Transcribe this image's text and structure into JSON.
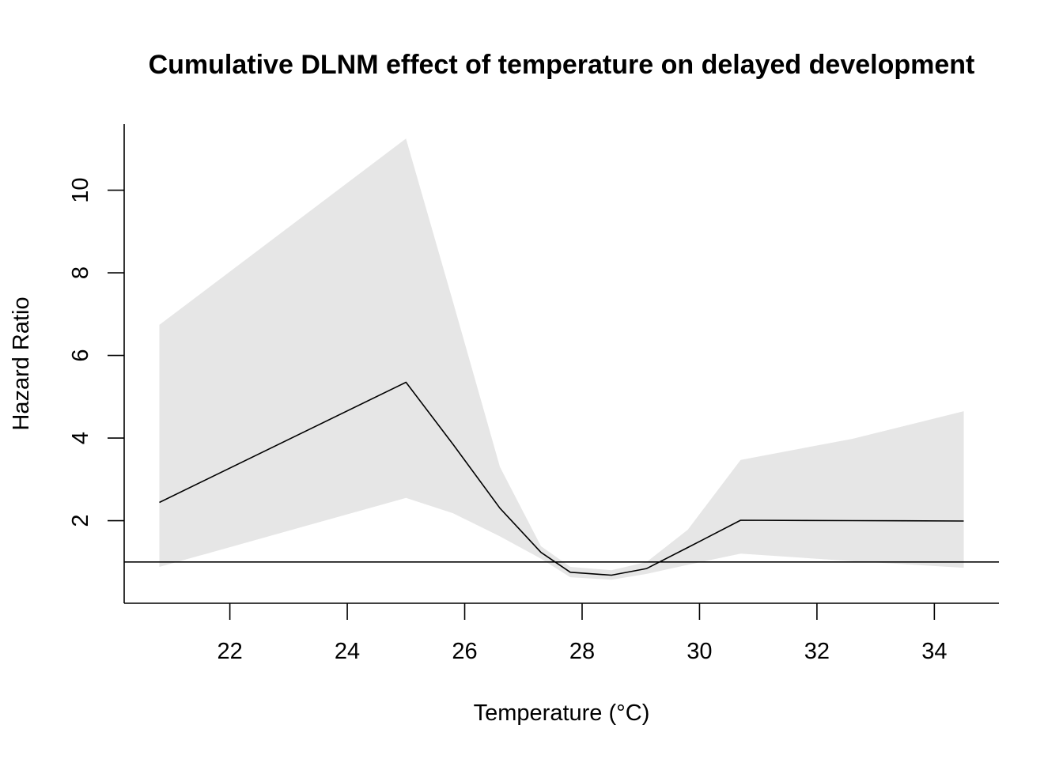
{
  "chart_data": {
    "type": "line",
    "title": "Cumulative DLNM effect of temperature on delayed development",
    "xlabel": "Temperature (°C)",
    "ylabel": "Hazard Ratio",
    "xlim": [
      20.2,
      35.1
    ],
    "ylim": [
      0.0,
      11.6
    ],
    "x_ticks": [
      22,
      24,
      26,
      28,
      30,
      32,
      34
    ],
    "y_ticks": [
      2,
      4,
      6,
      8,
      10
    ],
    "reference_line": 1,
    "grid": false,
    "legend": "none",
    "series": [
      {
        "x": [
          20.8,
          25.0,
          25.8,
          26.6,
          27.3,
          27.8,
          28.5,
          29.1,
          29.8,
          30.7,
          32.6,
          34.5
        ],
        "values": [
          2.44,
          5.35,
          3.85,
          2.3,
          1.23,
          0.75,
          0.68,
          0.84,
          1.35,
          2.01,
          2.0,
          1.99
        ],
        "ci_lower": [
          0.88,
          2.55,
          2.18,
          1.62,
          1.08,
          0.63,
          0.57,
          0.71,
          0.93,
          1.2,
          1.02,
          0.86
        ],
        "ci_upper": [
          6.74,
          11.25,
          7.3,
          3.3,
          1.38,
          0.88,
          0.8,
          1.0,
          1.78,
          3.47,
          3.98,
          4.65
        ]
      }
    ],
    "colors": {
      "line": "#000000",
      "band": "#e6e6e6",
      "axis": "#000000"
    }
  }
}
